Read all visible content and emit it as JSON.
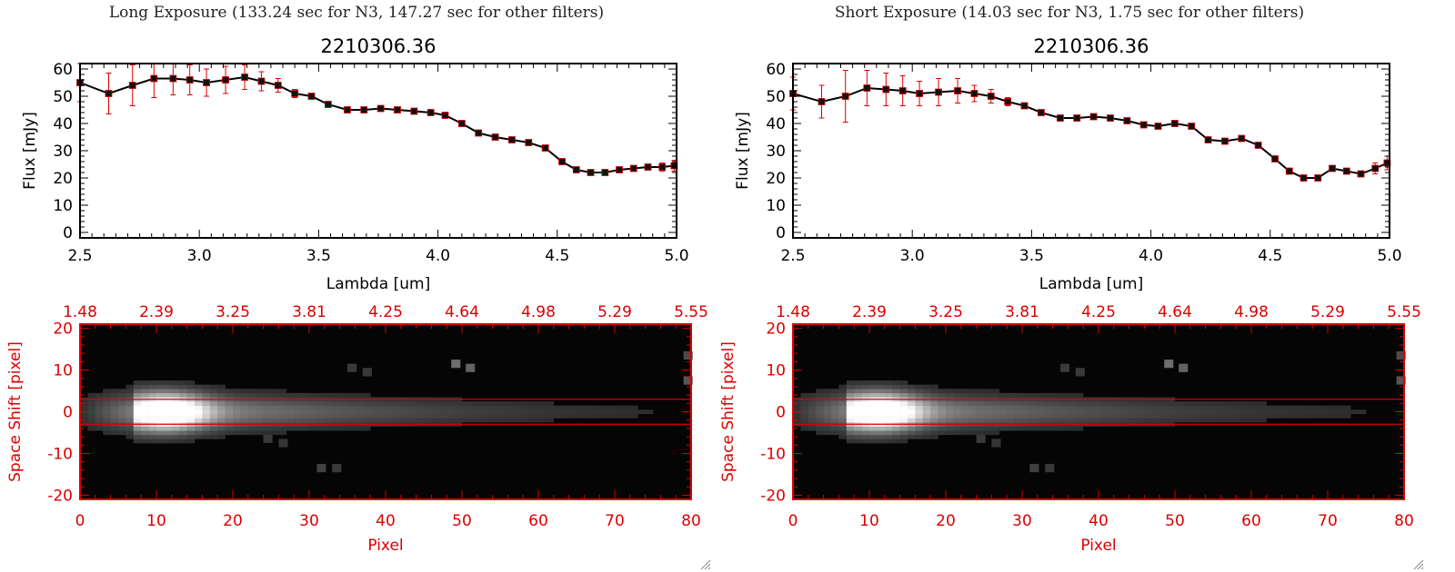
{
  "panels": [
    {
      "header": "Long Exposure (133.24 sec for N3, 147.27 sec for other filters)",
      "flux_chart": {
        "type": "line",
        "title": "2210306.36",
        "xlabel": "Lambda [um]",
        "ylabel": "Flux [mJy]",
        "xlim": [
          2.5,
          5.0
        ],
        "ylim": [
          -2,
          62
        ],
        "x_ticks": [
          "2.5",
          "3.0",
          "3.5",
          "4.0",
          "4.5",
          "5.0"
        ],
        "y_ticks": [
          "0",
          "10",
          "20",
          "30",
          "40",
          "50",
          "60"
        ],
        "x": [
          2.5,
          2.62,
          2.72,
          2.81,
          2.89,
          2.96,
          3.03,
          3.11,
          3.19,
          3.26,
          3.33,
          3.4,
          3.47,
          3.54,
          3.62,
          3.69,
          3.76,
          3.83,
          3.9,
          3.97,
          4.03,
          4.1,
          4.17,
          4.24,
          4.31,
          4.38,
          4.45,
          4.52,
          4.58,
          4.64,
          4.7,
          4.76,
          4.82,
          4.88,
          4.94,
          4.99
        ],
        "y": [
          55,
          51,
          54,
          56.5,
          56.5,
          56,
          55,
          56,
          57,
          55.5,
          54,
          51,
          50,
          47,
          45,
          45,
          45.5,
          45,
          44.5,
          44,
          43,
          40,
          36.5,
          35,
          34,
          33,
          31,
          26,
          23,
          22,
          22,
          23,
          23.5,
          24,
          24,
          24.5
        ],
        "yerr": [
          7,
          7.5,
          7.5,
          7,
          6,
          5.5,
          5,
          5,
          4.5,
          3.5,
          2.5,
          1.5,
          1,
          1,
          1,
          1,
          1,
          1,
          1,
          1,
          1,
          1,
          1,
          1,
          1,
          1,
          1,
          1,
          1,
          1,
          1,
          1,
          1,
          1,
          1.5,
          2
        ]
      },
      "image_plot": {
        "type": "heatmap",
        "xlabel": "Pixel",
        "ylabel": "Space Shift [pixel]",
        "xlim": [
          0,
          80
        ],
        "ylim": [
          -21,
          21
        ],
        "x_ticks": [
          "0",
          "10",
          "20",
          "30",
          "40",
          "50",
          "60",
          "70",
          "80"
        ],
        "y_ticks": [
          "-20",
          "-10",
          "0",
          "10",
          "20"
        ],
        "top_axis_ticks": [
          "1.48",
          "2.39",
          "3.25",
          "3.81",
          "4.25",
          "4.64",
          "4.98",
          "5.29",
          "5.55"
        ],
        "aperture_lines": [
          3,
          -3
        ]
      }
    },
    {
      "header": "Short Exposure (14.03 sec for N3, 1.75 sec for other filters)",
      "flux_chart": {
        "type": "line",
        "title": "2210306.36",
        "xlabel": "Lambda [um]",
        "ylabel": "Flux [mJy]",
        "xlim": [
          2.5,
          5.0
        ],
        "ylim": [
          -2,
          62
        ],
        "x_ticks": [
          "2.5",
          "3.0",
          "3.5",
          "4.0",
          "4.5",
          "5.0"
        ],
        "y_ticks": [
          "0",
          "10",
          "20",
          "30",
          "40",
          "50",
          "60"
        ],
        "x": [
          2.5,
          2.62,
          2.72,
          2.81,
          2.89,
          2.96,
          3.03,
          3.11,
          3.19,
          3.26,
          3.33,
          3.4,
          3.47,
          3.54,
          3.62,
          3.69,
          3.76,
          3.83,
          3.9,
          3.97,
          4.03,
          4.1,
          4.17,
          4.24,
          4.31,
          4.38,
          4.45,
          4.52,
          4.58,
          4.64,
          4.7,
          4.76,
          4.82,
          4.88,
          4.94,
          4.99
        ],
        "y": [
          51,
          48,
          50,
          53,
          52.5,
          52,
          51,
          51.5,
          52,
          51,
          50,
          48,
          46.5,
          44,
          42,
          42,
          42.5,
          42,
          41,
          39.5,
          39,
          40,
          39,
          34,
          33.5,
          34.5,
          32,
          27,
          22.5,
          20,
          20,
          23.5,
          22.5,
          21.5,
          23.5,
          25.5
        ],
        "yerr": [
          6,
          6,
          9.5,
          6.5,
          6,
          5.5,
          4.5,
          5,
          4.5,
          3,
          2.5,
          1.5,
          1,
          1,
          1,
          1,
          1,
          1,
          1,
          1,
          1,
          1,
          1,
          1,
          1,
          1,
          1,
          1,
          1,
          1,
          1,
          1,
          1,
          1,
          2,
          2.5
        ]
      },
      "image_plot": {
        "type": "heatmap",
        "xlabel": "Pixel",
        "ylabel": "Space Shift [pixel]",
        "xlim": [
          0,
          80
        ],
        "ylim": [
          -21,
          21
        ],
        "x_ticks": [
          "0",
          "10",
          "20",
          "30",
          "40",
          "50",
          "60",
          "70",
          "80"
        ],
        "y_ticks": [
          "-20",
          "-10",
          "0",
          "10",
          "20"
        ],
        "top_axis_ticks": [
          "1.48",
          "2.39",
          "3.25",
          "3.81",
          "4.25",
          "4.64",
          "4.98",
          "5.29",
          "5.55"
        ],
        "aperture_lines": [
          3,
          -3
        ]
      }
    }
  ],
  "colors": {
    "axis": "#000000",
    "error_bar": "#dd0000",
    "marker_fill": "#111111",
    "image_axis": "#dd0000",
    "image_bg": "#050505"
  },
  "chart_data": [
    {
      "type": "line",
      "title": "2210306.36",
      "subtitle": "Long Exposure (133.24 sec for N3, 147.27 sec for other filters)",
      "xlabel": "Lambda [um]",
      "ylabel": "Flux [mJy]",
      "xlim": [
        2.5,
        5.0
      ],
      "ylim": [
        -2,
        62
      ],
      "series": [
        {
          "name": "flux",
          "x": [
            2.5,
            2.62,
            2.72,
            2.81,
            2.89,
            2.96,
            3.03,
            3.11,
            3.19,
            3.26,
            3.33,
            3.4,
            3.47,
            3.54,
            3.62,
            3.69,
            3.76,
            3.83,
            3.9,
            3.97,
            4.03,
            4.1,
            4.17,
            4.24,
            4.31,
            4.38,
            4.45,
            4.52,
            4.58,
            4.64,
            4.7,
            4.76,
            4.82,
            4.88,
            4.94,
            4.99
          ],
          "values": [
            55,
            51,
            54,
            56.5,
            56.5,
            56,
            55,
            56,
            57,
            55.5,
            54,
            51,
            50,
            47,
            45,
            45,
            45.5,
            45,
            44.5,
            44,
            43,
            40,
            36.5,
            35,
            34,
            33,
            31,
            26,
            23,
            22,
            22,
            23,
            23.5,
            24,
            24,
            24.5
          ]
        }
      ]
    },
    {
      "type": "line",
      "title": "2210306.36",
      "subtitle": "Short Exposure (14.03 sec for N3, 1.75 sec for other filters)",
      "xlabel": "Lambda [um]",
      "ylabel": "Flux [mJy]",
      "xlim": [
        2.5,
        5.0
      ],
      "ylim": [
        -2,
        62
      ],
      "series": [
        {
          "name": "flux",
          "x": [
            2.5,
            2.62,
            2.72,
            2.81,
            2.89,
            2.96,
            3.03,
            3.11,
            3.19,
            3.26,
            3.33,
            3.4,
            3.47,
            3.54,
            3.62,
            3.69,
            3.76,
            3.83,
            3.9,
            3.97,
            4.03,
            4.1,
            4.17,
            4.24,
            4.31,
            4.38,
            4.45,
            4.52,
            4.58,
            4.64,
            4.7,
            4.76,
            4.82,
            4.88,
            4.94,
            4.99
          ],
          "values": [
            51,
            48,
            50,
            53,
            52.5,
            52,
            51,
            51.5,
            52,
            51,
            50,
            48,
            46.5,
            44,
            42,
            42,
            42.5,
            42,
            41,
            39.5,
            39,
            40,
            39,
            34,
            33.5,
            34.5,
            32,
            27,
            22.5,
            20,
            20,
            23.5,
            22.5,
            21.5,
            23.5,
            25.5
          ]
        }
      ]
    },
    {
      "type": "heatmap",
      "xlabel": "Pixel",
      "ylabel": "Space Shift [pixel]",
      "xlim": [
        0,
        80
      ],
      "ylim": [
        -21,
        21
      ],
      "top_axis_ticks": [
        "1.48",
        "2.39",
        "3.25",
        "3.81",
        "4.25",
        "4.64",
        "4.98",
        "5.29",
        "5.55"
      ]
    },
    {
      "type": "heatmap",
      "xlabel": "Pixel",
      "ylabel": "Space Shift [pixel]",
      "xlim": [
        0,
        80
      ],
      "ylim": [
        -21,
        21
      ],
      "top_axis_ticks": [
        "1.48",
        "2.39",
        "3.25",
        "3.81",
        "4.25",
        "4.64",
        "4.98",
        "5.29",
        "5.55"
      ]
    }
  ]
}
